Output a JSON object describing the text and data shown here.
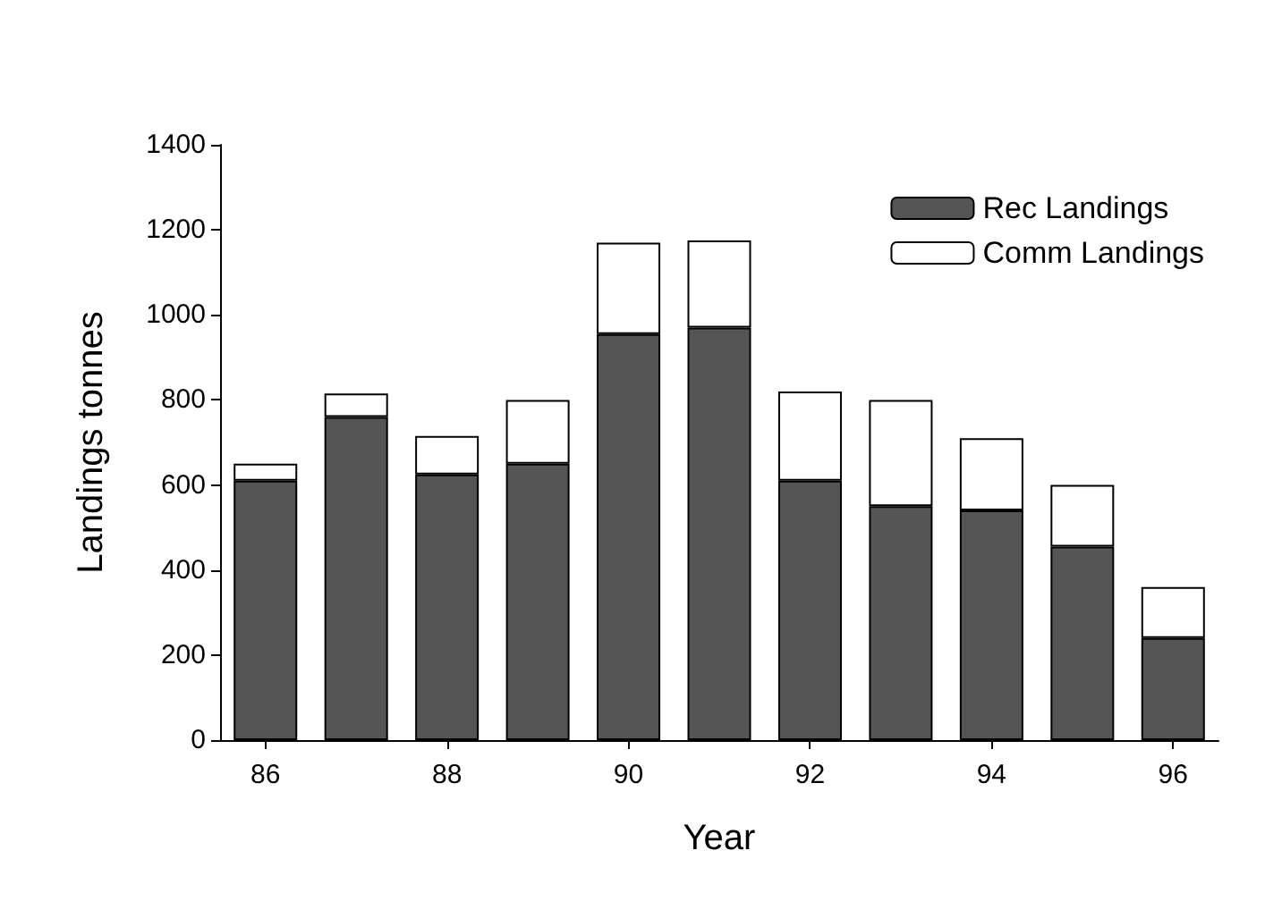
{
  "chart_data": {
    "type": "bar",
    "stacked": true,
    "xlabel": "Year",
    "ylabel": "Landings tonnes",
    "categories": [
      "86",
      null,
      "88",
      null,
      "90",
      null,
      "92",
      null,
      "94",
      null,
      "96"
    ],
    "series": [
      {
        "name": "Rec Landings",
        "color": "#555555",
        "values": [
          610,
          760,
          625,
          650,
          955,
          970,
          610,
          550,
          540,
          455,
          240
        ]
      },
      {
        "name": "Comm Landings",
        "color": "#ffffff",
        "values": [
          40,
          55,
          90,
          150,
          215,
          205,
          210,
          250,
          170,
          145,
          120
        ]
      }
    ],
    "ylim": [
      0,
      1400
    ],
    "yticks": [
      0,
      200,
      400,
      600,
      800,
      1000,
      1200,
      1400
    ],
    "grid": false,
    "legend": "top right"
  }
}
